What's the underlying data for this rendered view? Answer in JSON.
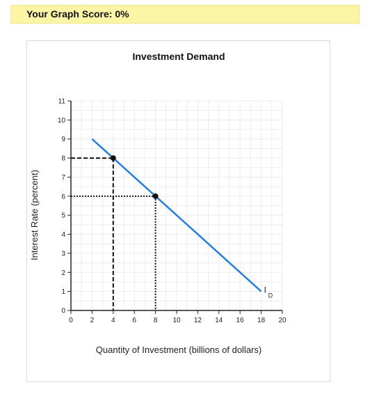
{
  "header": {
    "score_label": "Your Graph Score: 0%"
  },
  "colors": {
    "score_bg": "#fdf5a6",
    "demand_line": "#1e7fe8",
    "grid": "#ececec",
    "axis": "#222222"
  },
  "chart_data": {
    "type": "line",
    "title": "Investment Demand",
    "xlabel": "Quantity of Investment (billions of dollars)",
    "ylabel": "Interest Rate (percent)",
    "xlim": [
      0,
      20
    ],
    "ylim": [
      0,
      11
    ],
    "x_ticks": [
      0,
      2,
      4,
      6,
      8,
      10,
      12,
      14,
      16,
      18,
      20
    ],
    "y_ticks": [
      0,
      1,
      2,
      3,
      4,
      5,
      6,
      7,
      8,
      9,
      10,
      11
    ],
    "grid": true,
    "series": [
      {
        "name": "I_D",
        "label_main": "I",
        "label_sub": "D",
        "x": [
          2,
          18
        ],
        "y": [
          9,
          1
        ]
      }
    ],
    "points": [
      {
        "x": 4,
        "y": 8,
        "guide_style": "dashed"
      },
      {
        "x": 8,
        "y": 6,
        "guide_style": "dotted"
      }
    ]
  }
}
